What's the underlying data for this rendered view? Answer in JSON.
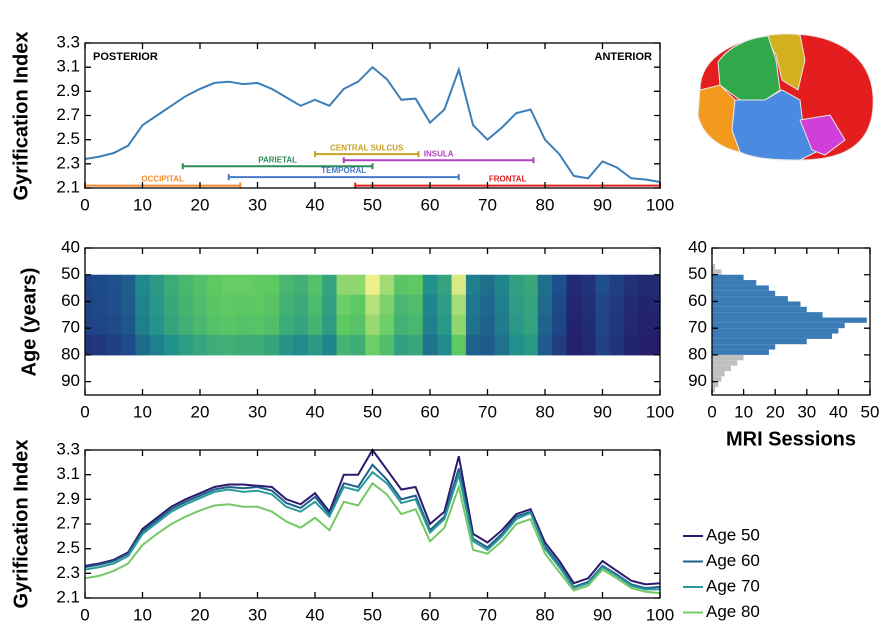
{
  "chart_data": [
    {
      "type": "line",
      "ylabel": "Gyrification Index",
      "annotations": [
        "POSTERIOR",
        "ANTERIOR"
      ],
      "x": [
        0,
        2.5,
        5,
        7.5,
        10,
        12.5,
        15,
        17.5,
        20,
        22.5,
        25,
        27.5,
        30,
        32.5,
        35,
        37.5,
        40,
        42.5,
        45,
        47.5,
        50,
        52.5,
        55,
        57.5,
        60,
        62.5,
        65,
        67.5,
        70,
        72.5,
        75,
        77.5,
        80,
        82.5,
        85,
        87.5,
        90,
        92.5,
        95,
        97.5,
        100
      ],
      "series": [
        {
          "color": "#3c7fb8",
          "values": [
            2.34,
            2.36,
            2.39,
            2.45,
            2.62,
            2.7,
            2.78,
            2.86,
            2.92,
            2.97,
            2.98,
            2.96,
            2.97,
            2.92,
            2.85,
            2.78,
            2.83,
            2.78,
            2.92,
            2.98,
            3.1,
            3.0,
            2.83,
            2.84,
            2.64,
            2.75,
            3.08,
            2.62,
            2.5,
            2.6,
            2.72,
            2.75,
            2.5,
            2.38,
            2.2,
            2.18,
            2.32,
            2.27,
            2.18,
            2.17,
            2.15
          ]
        }
      ],
      "regions": [
        {
          "name": "OCCIPITAL",
          "start": 0,
          "end": 27,
          "y": 2.12,
          "color": "#f28a2e"
        },
        {
          "name": "PARIETAL",
          "start": 17,
          "end": 50,
          "y": 2.28,
          "color": "#2e8b57"
        },
        {
          "name": "TEMPORAL",
          "start": 25,
          "end": 65,
          "y": 2.19,
          "color": "#4a78c8"
        },
        {
          "name": "CENTRAL SULCUS",
          "start": 40,
          "end": 58,
          "y": 2.38,
          "color": "#c8a020"
        },
        {
          "name": "INSULA",
          "start": 45,
          "end": 78,
          "y": 2.33,
          "color": "#b040c0"
        },
        {
          "name": "FRONTAL",
          "start": 47,
          "end": 100,
          "y": 2.12,
          "color": "#e02020"
        }
      ],
      "xlim": [
        0,
        100
      ],
      "xticks": [
        0,
        10,
        20,
        30,
        40,
        50,
        60,
        70,
        80,
        90,
        100
      ],
      "ylim": [
        2.1,
        3.3
      ],
      "yticks": [
        2.1,
        2.3,
        2.5,
        2.7,
        2.9,
        3.1,
        3.3
      ]
    },
    {
      "type": "heatmap",
      "ylabel": "Age (years)",
      "x": [
        0,
        2.5,
        5,
        7.5,
        10,
        12.5,
        15,
        17.5,
        20,
        22.5,
        25,
        27.5,
        30,
        32.5,
        35,
        37.5,
        40,
        42.5,
        45,
        47.5,
        50,
        52.5,
        55,
        57.5,
        60,
        62.5,
        65,
        67.5,
        70,
        72.5,
        75,
        77.5,
        80,
        82.5,
        85,
        87.5,
        90,
        92.5,
        95,
        97.5,
        100
      ],
      "age_bins": [
        50,
        57.5,
        65,
        72.5,
        80
      ],
      "z": [
        [
          2.36,
          2.38,
          2.41,
          2.47,
          2.66,
          2.75,
          2.84,
          2.9,
          2.95,
          3.0,
          3.02,
          3.02,
          3.01,
          3.0,
          2.9,
          2.86,
          2.95,
          2.8,
          3.1,
          3.1,
          3.3,
          3.14,
          2.98,
          3.0,
          2.7,
          2.8,
          3.25,
          2.62,
          2.55,
          2.65,
          2.78,
          2.82,
          2.55,
          2.4,
          2.22,
          2.26,
          2.4,
          2.32,
          2.24,
          2.21,
          2.22
        ],
        [
          2.35,
          2.37,
          2.4,
          2.46,
          2.64,
          2.73,
          2.82,
          2.88,
          2.93,
          2.98,
          3.0,
          2.99,
          3.0,
          2.97,
          2.87,
          2.83,
          2.92,
          2.78,
          3.03,
          3.0,
          3.18,
          3.06,
          2.9,
          2.93,
          2.65,
          2.76,
          3.15,
          2.58,
          2.51,
          2.62,
          2.76,
          2.8,
          2.52,
          2.37,
          2.19,
          2.23,
          2.36,
          2.29,
          2.21,
          2.18,
          2.19
        ],
        [
          2.33,
          2.35,
          2.38,
          2.44,
          2.62,
          2.71,
          2.8,
          2.86,
          2.91,
          2.96,
          2.98,
          2.96,
          2.97,
          2.94,
          2.84,
          2.8,
          2.88,
          2.76,
          3.0,
          2.97,
          3.12,
          3.03,
          2.87,
          2.9,
          2.63,
          2.74,
          3.1,
          2.56,
          2.49,
          2.6,
          2.74,
          2.79,
          2.5,
          2.35,
          2.18,
          2.22,
          2.35,
          2.28,
          2.2,
          2.17,
          2.17
        ],
        [
          2.26,
          2.28,
          2.32,
          2.38,
          2.53,
          2.62,
          2.7,
          2.76,
          2.81,
          2.85,
          2.86,
          2.84,
          2.84,
          2.8,
          2.72,
          2.67,
          2.75,
          2.65,
          2.88,
          2.85,
          3.03,
          2.94,
          2.78,
          2.82,
          2.56,
          2.67,
          3.0,
          2.49,
          2.46,
          2.56,
          2.7,
          2.74,
          2.46,
          2.31,
          2.16,
          2.2,
          2.33,
          2.26,
          2.18,
          2.15,
          2.14
        ]
      ],
      "zlim": [
        2.1,
        3.3
      ],
      "colormap": [
        "#251565",
        "#1e4e8c",
        "#21918c",
        "#5ec962",
        "#f0f08a"
      ],
      "xlim": [
        0,
        100
      ],
      "xticks": [
        0,
        10,
        20,
        30,
        40,
        50,
        60,
        70,
        80,
        90,
        100
      ],
      "ylim": [
        40,
        95
      ],
      "yticks": [
        40,
        50,
        60,
        70,
        80,
        90
      ],
      "y_inverted": true
    },
    {
      "type": "histogram",
      "orientation": "horizontal",
      "xlabel": "MRI Sessions",
      "bins": [
        46,
        48,
        50,
        52,
        54,
        56,
        58,
        60,
        62,
        64,
        66,
        68,
        70,
        72,
        74,
        76,
        78,
        80,
        82,
        84,
        86,
        88,
        90,
        92,
        94
      ],
      "values": [
        1,
        3,
        10,
        14,
        18,
        20,
        24,
        28,
        30,
        35,
        49,
        42,
        40,
        38,
        30,
        20,
        18,
        10,
        8,
        6,
        4,
        3,
        2,
        1
      ],
      "colors": [
        "#c0c0c0",
        "#c0c0c0",
        "#3a7ab5",
        "#3a7ab5",
        "#3a7ab5",
        "#3a7ab5",
        "#3a7ab5",
        "#3a7ab5",
        "#3a7ab5",
        "#3a7ab5",
        "#3a7ab5",
        "#3a7ab5",
        "#3a7ab5",
        "#3a7ab5",
        "#3a7ab5",
        "#3a7ab5",
        "#3a7ab5",
        "#c0c0c0",
        "#c0c0c0",
        "#c0c0c0",
        "#c0c0c0",
        "#c0c0c0",
        "#c0c0c0",
        "#c0c0c0"
      ],
      "xlim": [
        0,
        50
      ],
      "xticks": [
        0,
        10,
        20,
        30,
        40,
        50
      ],
      "ylim": [
        40,
        95
      ],
      "yticks": [
        40,
        50,
        60,
        70,
        80,
        90
      ],
      "y_inverted": true
    },
    {
      "type": "line",
      "ylabel": "Gyrification Index",
      "legend": "right",
      "x": [
        0,
        2.5,
        5,
        7.5,
        10,
        12.5,
        15,
        17.5,
        20,
        22.5,
        25,
        27.5,
        30,
        32.5,
        35,
        37.5,
        40,
        42.5,
        45,
        47.5,
        50,
        52.5,
        55,
        57.5,
        60,
        62.5,
        65,
        67.5,
        70,
        72.5,
        75,
        77.5,
        80,
        82.5,
        85,
        87.5,
        90,
        92.5,
        95,
        97.5,
        100
      ],
      "series": [
        {
          "name": "Age 50",
          "color": "#2b1a6e",
          "values": [
            2.36,
            2.38,
            2.41,
            2.47,
            2.66,
            2.75,
            2.84,
            2.9,
            2.95,
            3.0,
            3.02,
            3.02,
            3.01,
            3.0,
            2.9,
            2.86,
            2.95,
            2.8,
            3.1,
            3.1,
            3.3,
            3.14,
            2.98,
            3.0,
            2.7,
            2.8,
            3.25,
            2.62,
            2.55,
            2.65,
            2.78,
            2.82,
            2.55,
            2.4,
            2.22,
            2.26,
            2.4,
            2.32,
            2.24,
            2.21,
            2.22
          ]
        },
        {
          "name": "Age 60",
          "color": "#1f5f8b",
          "values": [
            2.35,
            2.37,
            2.4,
            2.46,
            2.64,
            2.73,
            2.82,
            2.88,
            2.93,
            2.98,
            3.0,
            2.99,
            3.0,
            2.97,
            2.87,
            2.83,
            2.92,
            2.78,
            3.03,
            3.0,
            3.18,
            3.06,
            2.9,
            2.93,
            2.65,
            2.76,
            3.15,
            2.58,
            2.51,
            2.62,
            2.76,
            2.8,
            2.52,
            2.37,
            2.19,
            2.23,
            2.36,
            2.29,
            2.21,
            2.18,
            2.19
          ]
        },
        {
          "name": "Age 70",
          "color": "#2a9a9a",
          "values": [
            2.33,
            2.35,
            2.38,
            2.44,
            2.62,
            2.71,
            2.8,
            2.86,
            2.91,
            2.96,
            2.98,
            2.96,
            2.97,
            2.94,
            2.84,
            2.8,
            2.88,
            2.76,
            3.0,
            2.97,
            3.12,
            3.03,
            2.87,
            2.9,
            2.63,
            2.74,
            3.1,
            2.56,
            2.49,
            2.6,
            2.74,
            2.79,
            2.5,
            2.35,
            2.18,
            2.22,
            2.35,
            2.28,
            2.2,
            2.17,
            2.17
          ]
        },
        {
          "name": "Age 80",
          "color": "#74c865",
          "values": [
            2.26,
            2.28,
            2.32,
            2.38,
            2.53,
            2.62,
            2.7,
            2.76,
            2.81,
            2.85,
            2.86,
            2.84,
            2.84,
            2.8,
            2.72,
            2.67,
            2.75,
            2.65,
            2.88,
            2.85,
            3.03,
            2.94,
            2.78,
            2.82,
            2.56,
            2.67,
            3.0,
            2.49,
            2.46,
            2.56,
            2.7,
            2.74,
            2.46,
            2.31,
            2.16,
            2.2,
            2.33,
            2.26,
            2.18,
            2.15,
            2.14
          ]
        }
      ],
      "xlim": [
        0,
        100
      ],
      "xticks": [
        0,
        10,
        20,
        30,
        40,
        50,
        60,
        70,
        80,
        90,
        100
      ],
      "ylim": [
        2.1,
        3.3
      ],
      "yticks": [
        2.1,
        2.3,
        2.5,
        2.7,
        2.9,
        3.1,
        3.3
      ]
    }
  ]
}
